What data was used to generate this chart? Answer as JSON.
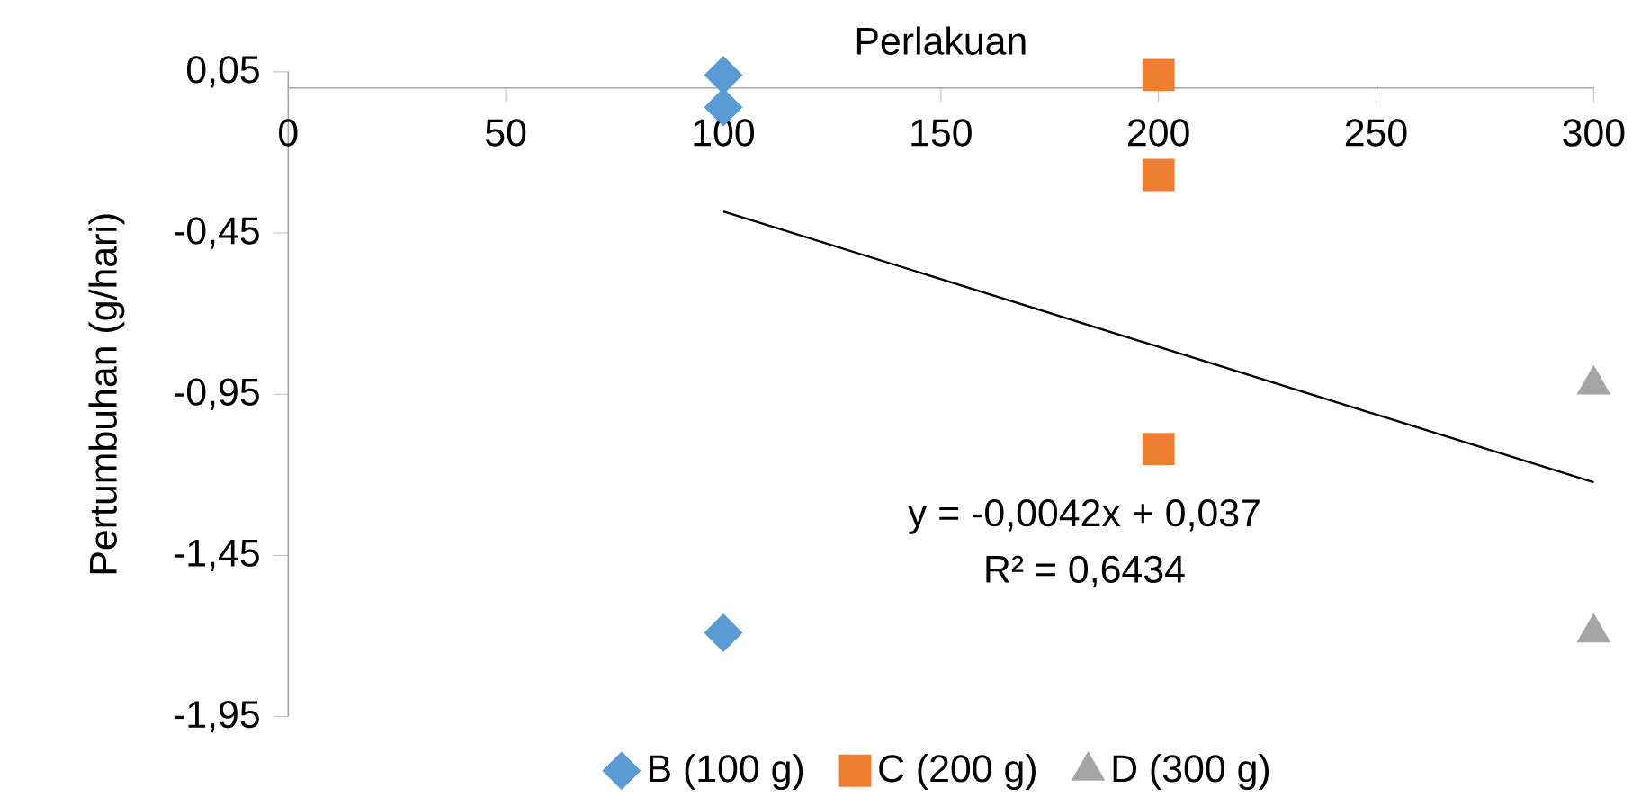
{
  "chart_data": {
    "type": "scatter",
    "xlabel": "Perlakuan",
    "ylabel": "Pertumbuhan (g/hari)",
    "xlim": [
      0,
      300
    ],
    "xticks": [
      0,
      50,
      100,
      150,
      200,
      250,
      300
    ],
    "ylim": [
      -1.95,
      0.05
    ],
    "yticks": [
      {
        "value": -1.95,
        "label": "-1,95"
      },
      {
        "value": -1.45,
        "label": "-1,45"
      },
      {
        "value": -0.95,
        "label": "-0,95"
      },
      {
        "value": -0.45,
        "label": "-0,45"
      },
      {
        "value": 0.05,
        "label": "0,05"
      }
    ],
    "series": [
      {
        "name": "B (100 g)",
        "color": "#5b9bd5",
        "marker": "diamond",
        "x": [
          100,
          100,
          100
        ],
        "values": [
          0.04,
          -0.06,
          -1.69
        ]
      },
      {
        "name": "C (200 g)",
        "color": "#ed7d31",
        "marker": "square",
        "x": [
          200,
          200,
          200
        ],
        "values": [
          0.04,
          -0.27,
          -1.12
        ]
      },
      {
        "name": "D (300 g)",
        "color": "#a5a5a5",
        "marker": "triangle",
        "x": [
          300,
          300
        ],
        "values": [
          -0.92,
          -1.69
        ]
      },
      {
        "type": "line",
        "color": "#000000",
        "line_style": "solid",
        "marker": "none",
        "x": [
          100,
          300
        ],
        "values": [
          -0.383,
          -1.223
        ]
      }
    ],
    "annotations": [
      "y = -0,0042x + 0,037",
      "R² = 0,6434"
    ],
    "legend": "bottom",
    "grid": false
  }
}
